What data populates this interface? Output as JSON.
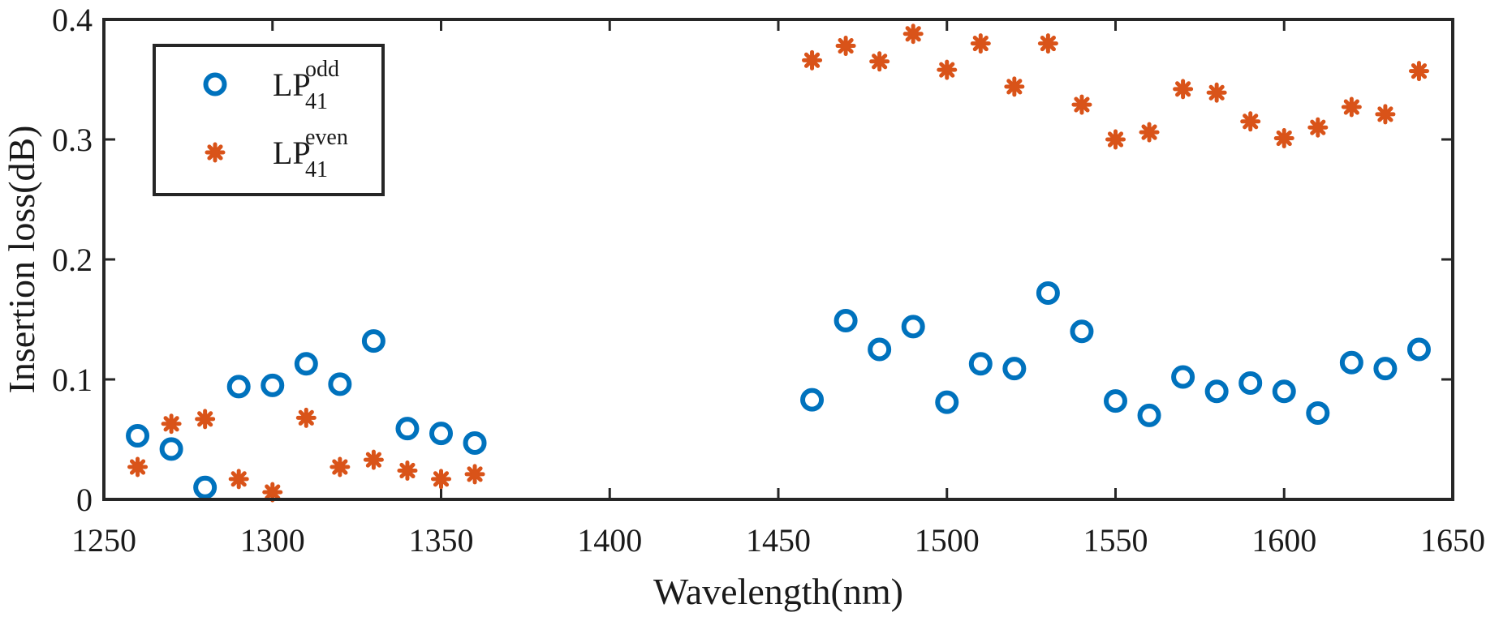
{
  "chart_data": {
    "type": "scatter",
    "title": "",
    "xlabel": "Wavelength(nm)",
    "ylabel": "Insertion loss(dB)",
    "xlim": [
      1250,
      1650
    ],
    "ylim": [
      0,
      0.4
    ],
    "xticks": [
      1250,
      1300,
      1350,
      1400,
      1450,
      1500,
      1550,
      1600,
      1650
    ],
    "yticks": [
      0,
      0.1,
      0.2,
      0.3,
      0.4
    ],
    "ytick_labels": [
      "0",
      "0.1",
      "0.2",
      "0.3",
      "0.4"
    ],
    "grid": false,
    "legend": {
      "placement": "top-left"
    },
    "series": [
      {
        "base": "LP",
        "sub": "41",
        "sup": "odd",
        "marker": "circle",
        "color": "#0072BD",
        "x": [
          1260,
          1270,
          1280,
          1290,
          1300,
          1310,
          1320,
          1330,
          1340,
          1350,
          1360,
          1460,
          1470,
          1480,
          1490,
          1500,
          1510,
          1520,
          1530,
          1540,
          1550,
          1560,
          1570,
          1580,
          1590,
          1600,
          1610,
          1620,
          1630,
          1640
        ],
        "y": [
          0.053,
          0.042,
          0.01,
          0.094,
          0.095,
          0.113,
          0.096,
          0.132,
          0.059,
          0.055,
          0.047,
          0.083,
          0.149,
          0.125,
          0.144,
          0.081,
          0.113,
          0.109,
          0.172,
          0.14,
          0.082,
          0.07,
          0.102,
          0.09,
          0.097,
          0.09,
          0.072,
          0.114,
          0.109,
          0.125
        ]
      },
      {
        "base": "LP",
        "sub": "41",
        "sup": "even",
        "marker": "asterisk",
        "color": "#D95319",
        "x": [
          1260,
          1270,
          1280,
          1290,
          1300,
          1310,
          1320,
          1330,
          1340,
          1350,
          1360,
          1460,
          1470,
          1480,
          1490,
          1500,
          1510,
          1520,
          1530,
          1540,
          1550,
          1560,
          1570,
          1580,
          1590,
          1600,
          1610,
          1620,
          1630,
          1640
        ],
        "y": [
          0.027,
          0.063,
          0.067,
          0.017,
          0.006,
          0.068,
          0.027,
          0.033,
          0.024,
          0.017,
          0.021,
          0.366,
          0.378,
          0.365,
          0.388,
          0.358,
          0.38,
          0.344,
          0.38,
          0.329,
          0.3,
          0.306,
          0.342,
          0.339,
          0.315,
          0.301,
          0.31,
          0.327,
          0.321,
          0.357
        ]
      }
    ]
  }
}
